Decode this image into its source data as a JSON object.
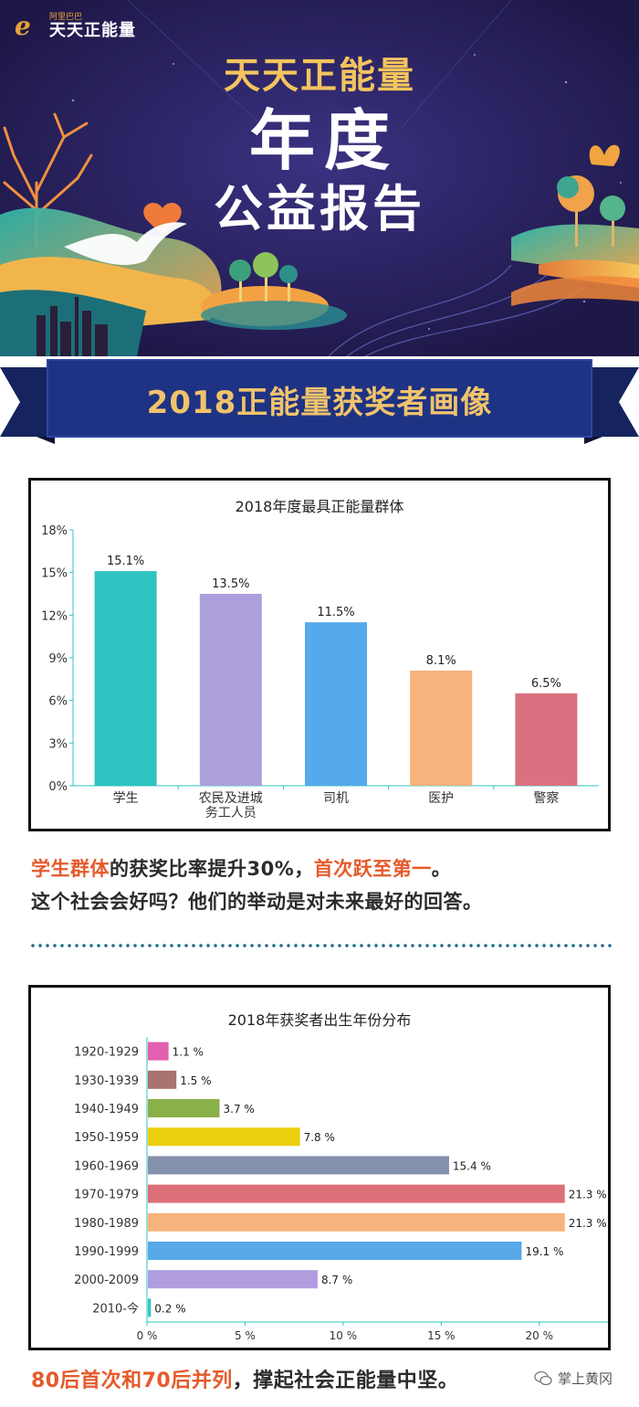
{
  "header": {
    "logo_small": "阿里巴巴",
    "logo_big": "天天正能量",
    "title_line1": "天天正能量",
    "title_line2": "年度",
    "title_line3": "公益报告"
  },
  "section": {
    "ribbon_label": "2018正能量获奖者画像"
  },
  "caption1": {
    "line1_hl1": "学生群体",
    "line1_mid": "的获奖比率提升30%，",
    "line1_hl2": "首次跃至第一",
    "line1_end": "。",
    "line2": "这个社会会好吗？他们的举动是对未来最好的回答。"
  },
  "caption2": {
    "hl": "80后首次和70后并列",
    "rest": "，撑起社会正能量中坚。"
  },
  "watermark": {
    "text": "掌上黄冈"
  },
  "colors": {
    "banner_bg": "#27205a",
    "ribbon_blue": "#1d2f7c",
    "accent_orange": "#e55a2b"
  },
  "chart_data": [
    {
      "type": "bar",
      "title": "2018年度最具正能量群体",
      "categories": [
        "学生",
        "农民及进城\n务工人员",
        "司机",
        "医护",
        "警察"
      ],
      "values": [
        15.1,
        13.5,
        11.5,
        8.1,
        6.5
      ],
      "labels": [
        "15.1%",
        "13.5%",
        "11.5%",
        "8.1%",
        "6.5%"
      ],
      "colors": [
        "#2ec4c1",
        "#ad9fdb",
        "#56a9ea",
        "#f8b27b",
        "#da7180"
      ],
      "yticks": [
        "0%",
        "3%",
        "6%",
        "9%",
        "12%",
        "15%",
        "18%"
      ],
      "ylim": [
        0,
        18
      ],
      "grid": false
    },
    {
      "type": "bar",
      "orientation": "horizontal",
      "title": "2018年获奖者出生年份分布",
      "categories": [
        "1920-1929",
        "1930-1939",
        "1940-1949",
        "1950-1959",
        "1960-1969",
        "1970-1979",
        "1980-1989",
        "1990-1999",
        "2000-2009",
        "2010-今"
      ],
      "values": [
        1.1,
        1.5,
        3.7,
        7.8,
        15.4,
        21.3,
        21.3,
        19.1,
        8.7,
        0.2
      ],
      "labels": [
        "1.1 %",
        "1.5 %",
        "3.7 %",
        "7.8 %",
        "15.4 %",
        "21.3 %",
        "21.3 %",
        "19.1 %",
        "8.7 %",
        "0.2 %"
      ],
      "colors": [
        "#e260b0",
        "#a9726d",
        "#8ab04a",
        "#e9cf0c",
        "#8590ad",
        "#db7078",
        "#f8b37c",
        "#57a9ea",
        "#b09ddf",
        "#39c3c0"
      ],
      "xticks": [
        "0 %",
        "5 %",
        "10 %",
        "15 %",
        "20 %"
      ],
      "xlim": [
        0,
        23.5
      ],
      "grid": false
    }
  ]
}
